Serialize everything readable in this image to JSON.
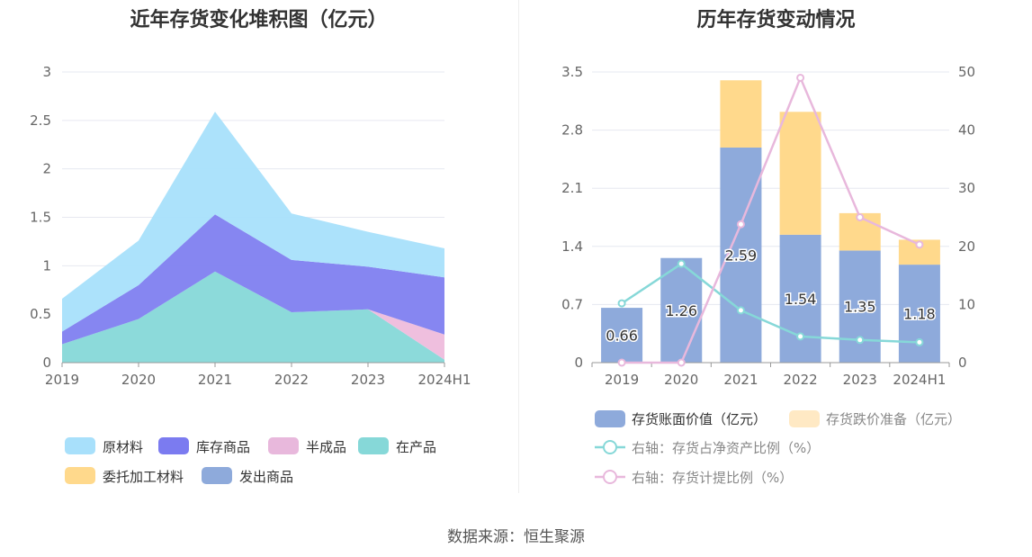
{
  "chart_data": [
    {
      "type": "area",
      "stacked": true,
      "title": "近年存货变化堆积图（亿元）",
      "categories": [
        "2019",
        "2020",
        "2021",
        "2022",
        "2023",
        "2024H1"
      ],
      "ylim": [
        0,
        3
      ],
      "yticks": [
        "0",
        "0.5",
        "1",
        "1.5",
        "2",
        "2.5",
        "3"
      ],
      "grid": true,
      "legend_position": "bottom",
      "series": [
        {
          "name": "在产品",
          "color": "#86d8d8",
          "values": [
            0.19,
            0.45,
            0.94,
            0.52,
            0.55,
            0.03
          ]
        },
        {
          "name": "委托加工材料",
          "color": "#ffd98c",
          "values": [
            0,
            0,
            0,
            0,
            0,
            0
          ]
        },
        {
          "name": "发出商品",
          "color": "#8eaadb",
          "values": [
            0,
            0,
            0,
            0,
            0,
            0
          ]
        },
        {
          "name": "半成品",
          "color": "#eebcdc",
          "values": [
            0,
            0,
            0,
            0,
            0,
            0.26
          ]
        },
        {
          "name": "库存商品",
          "color": "#8080f0",
          "values": [
            0.13,
            0.35,
            0.59,
            0.54,
            0.44,
            0.59
          ]
        },
        {
          "name": "原材料",
          "color": "#a8e0fb",
          "values": [
            0.34,
            0.46,
            1.06,
            0.48,
            0.36,
            0.3
          ]
        }
      ],
      "legend": [
        {
          "name": "原材料",
          "color": "#a8e0fb"
        },
        {
          "name": "库存商品",
          "color": "#7b7bf0"
        },
        {
          "name": "半成品",
          "color": "#e8b8dc"
        },
        {
          "name": "在产品",
          "color": "#86d8d8"
        },
        {
          "name": "委托加工材料",
          "color": "#ffd98c"
        },
        {
          "name": "发出商品",
          "color": "#8eaadb"
        }
      ]
    },
    {
      "type": "bar",
      "stacked": true,
      "title": "历年存货变动情况",
      "categories": [
        "2019",
        "2020",
        "2021",
        "2022",
        "2023",
        "2024H1"
      ],
      "ylim": [
        0,
        3.5
      ],
      "yticks": [
        "0",
        "0.7",
        "1.4",
        "2.1",
        "2.8",
        "3.5"
      ],
      "y2lim": [
        0,
        50
      ],
      "y2ticks": [
        "0",
        "10",
        "20",
        "30",
        "40",
        "50"
      ],
      "grid": true,
      "legend_position": "bottom",
      "series": [
        {
          "name": "存货账面价值（亿元）",
          "color": "#8eaadb",
          "values": [
            0.66,
            1.26,
            2.59,
            1.54,
            1.35,
            1.18
          ],
          "labels": [
            "0.66",
            "1.26",
            "2.59",
            "1.54",
            "1.35",
            "1.18"
          ]
        },
        {
          "name": "存货跌价准备（亿元）",
          "color": "#ffd98c",
          "values": [
            0,
            0,
            0.81,
            1.48,
            0.45,
            0.3
          ]
        }
      ],
      "line_series": [
        {
          "name": "右轴：存货占净资产比例（%）",
          "color": "#86d8d8",
          "values": [
            10.2,
            17,
            9,
            4.5,
            3.9,
            3.5
          ]
        },
        {
          "name": "右轴：存货计提比例（%）",
          "color": "#e8b8dc",
          "values": [
            0,
            0,
            23.8,
            49,
            25,
            20.3
          ]
        }
      ]
    }
  ],
  "source": "数据来源：恒生聚源"
}
